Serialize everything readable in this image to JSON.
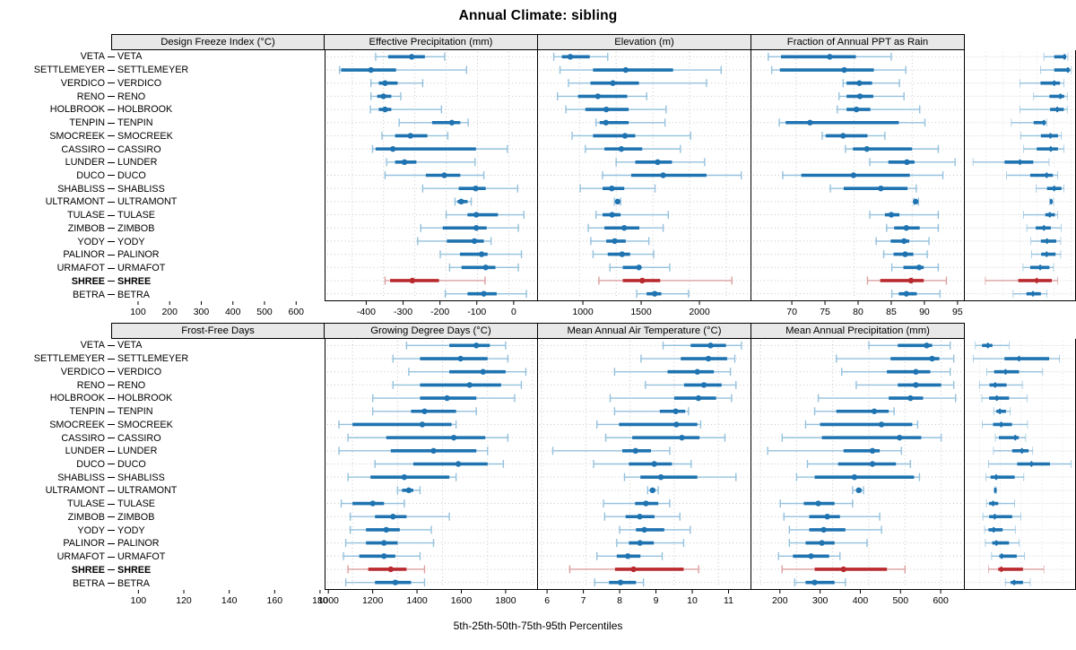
{
  "title": "Annual Climate: sibling",
  "footer": "5th-25th-50th-75th-95th Percentiles",
  "colors": {
    "blue": "#1e73b0",
    "blue_light": "#94c1dd",
    "red": "#b92a2e",
    "red_light": "#dc9fa0",
    "grid": "#c6c6c6",
    "strip_bg": "#e8e8e8",
    "border": "#000000"
  },
  "stations": [
    "VETA",
    "SETTLEMEYER",
    "VERDICO",
    "RENO",
    "HOLBROOK",
    "TENPIN",
    "SMOCREEK",
    "CASSIRO",
    "LUNDER",
    "DUCO",
    "SHABLISS",
    "ULTRAMONT",
    "TULASE",
    "ZIMBOB",
    "YODY",
    "PALINOR",
    "URMAFOT",
    "SHREE",
    "BETRA"
  ],
  "highlight_station": "SHREE",
  "chart_data": {
    "type": "interval-percentile-plot",
    "grid": {
      "rows": 2,
      "cols": 4
    },
    "percentiles": [
      5,
      25,
      50,
      75,
      95
    ],
    "values_convention": "each row is [p5,p25,p50,p75,p95] aligned with stations order",
    "panels": [
      {
        "title": "Design Freeze Index (°C)",
        "xlim": [
          15,
          690
        ],
        "ticks": [
          100,
          200,
          300,
          400,
          500,
          600
        ],
        "values": [
          [
            175,
            215,
            290,
            332,
            395
          ],
          [
            60,
            65,
            160,
            240,
            465
          ],
          [
            160,
            185,
            205,
            245,
            325
          ],
          [
            160,
            180,
            200,
            225,
            255
          ],
          [
            158,
            185,
            205,
            225,
            385
          ],
          [
            250,
            355,
            418,
            445,
            470
          ],
          [
            195,
            237,
            286,
            340,
            405
          ],
          [
            165,
            175,
            230,
            495,
            595
          ],
          [
            210,
            237,
            267,
            305,
            492
          ],
          [
            205,
            335,
            394,
            445,
            520
          ],
          [
            325,
            440,
            494,
            526,
            628
          ],
          [
            428,
            436,
            448,
            468,
            480
          ],
          [
            400,
            468,
            496,
            565,
            648
          ],
          [
            319,
            389,
            496,
            529,
            630
          ],
          [
            309,
            402,
            490,
            520,
            543
          ],
          [
            381,
            444,
            513,
            532,
            640
          ],
          [
            411,
            449,
            526,
            557,
            630
          ],
          [
            205,
            221,
            292,
            377,
            524
          ],
          [
            397,
            468,
            520,
            561,
            656
          ]
        ]
      },
      {
        "title": "Effective Precipitation (mm)",
        "xlim": [
          -513,
          66
        ],
        "ticks": [
          -400,
          -300,
          -200,
          -100,
          0
        ],
        "values": [
          [
            -470,
            -448,
            -425,
            -372,
            -323
          ],
          [
            -453,
            -363,
            -274,
            -145,
            -14
          ],
          [
            -430,
            -370,
            -309,
            -238,
            -54
          ],
          [
            -460,
            -404,
            -350,
            -270,
            -217
          ],
          [
            -437,
            -384,
            -327,
            -266,
            -164
          ],
          [
            -355,
            -345,
            -328,
            -266,
            -167
          ],
          [
            -420,
            -363,
            -276,
            -248,
            -97
          ],
          [
            -384,
            -332,
            -286,
            -229,
            -125
          ],
          [
            -300,
            -248,
            -187,
            -148,
            -59
          ],
          [
            -337,
            -259,
            -172,
            -54,
            41
          ],
          [
            -398,
            -337,
            -312,
            -278,
            -194
          ],
          [
            -305,
            -302,
            -296,
            -291,
            -288
          ],
          [
            -355,
            -337,
            -311,
            -288,
            -158
          ],
          [
            -376,
            -332,
            -278,
            -237,
            -172
          ],
          [
            -369,
            -327,
            -304,
            -274,
            -211
          ],
          [
            -363,
            -323,
            -284,
            -262,
            -198
          ],
          [
            -317,
            -282,
            -238,
            -232,
            -154
          ],
          [
            -347,
            -282,
            -229,
            -180,
            15
          ],
          [
            -244,
            -217,
            -195,
            -177,
            -103
          ]
        ]
      },
      {
        "title": "Elevation (m)",
        "xlim": [
          615,
          2446
        ],
        "ticks": [
          1000,
          1500,
          2000
        ],
        "values": [
          [
            760,
            870,
            1290,
            1515,
            1820
          ],
          [
            790,
            860,
            1415,
            1670,
            1945
          ],
          [
            1405,
            1435,
            1545,
            1655,
            1890
          ],
          [
            1370,
            1435,
            1550,
            1665,
            1930
          ],
          [
            1355,
            1435,
            1520,
            1640,
            2065
          ],
          [
            855,
            910,
            1120,
            1885,
            2110
          ],
          [
            1225,
            1255,
            1405,
            1615,
            1765
          ],
          [
            1425,
            1490,
            1610,
            2000,
            2225
          ],
          [
            1635,
            1795,
            1955,
            2020,
            2370
          ],
          [
            885,
            1045,
            1495,
            1980,
            2265
          ],
          [
            1295,
            1410,
            1730,
            1960,
            2035
          ],
          [
            2015,
            2022,
            2030,
            2042,
            2055
          ],
          [
            1635,
            1765,
            1820,
            1890,
            2225
          ],
          [
            1780,
            1845,
            1950,
            2065,
            2225
          ],
          [
            1690,
            1815,
            1930,
            1975,
            2145
          ],
          [
            1755,
            1840,
            1940,
            2010,
            2130
          ],
          [
            1825,
            1925,
            2060,
            2100,
            2225
          ],
          [
            1615,
            1725,
            1990,
            2100,
            2295
          ],
          [
            1825,
            1885,
            1950,
            2040,
            2240
          ]
        ]
      },
      {
        "title": "Fraction of Annual PPT as Rain",
        "xlim": [
          63.9,
          96.1
        ],
        "ticks": [
          70,
          75,
          80,
          85,
          90,
          95
        ],
        "values": [
          [
            87,
            90,
            93,
            93.5,
            94
          ],
          [
            86,
            90,
            94,
            94.6,
            95
          ],
          [
            80,
            86,
            90,
            91.7,
            92.8
          ],
          [
            84,
            88.6,
            91.8,
            92.9,
            93.8
          ],
          [
            80,
            88.8,
            90.9,
            92.8,
            93.8
          ],
          [
            77.5,
            84,
            87,
            87.6,
            87.8
          ],
          [
            80.2,
            86.1,
            88.9,
            91.1,
            92.1
          ],
          [
            81.1,
            84.9,
            89,
            91.1,
            92.8
          ],
          [
            66.3,
            75.5,
            80,
            83.9,
            88.5
          ],
          [
            76.1,
            83,
            87.8,
            89.6,
            91
          ],
          [
            84.7,
            87.9,
            90,
            92.1,
            92.8
          ],
          [
            88.7,
            88.9,
            89.1,
            89.5,
            89.8
          ],
          [
            81,
            87.4,
            88.7,
            90.2,
            91
          ],
          [
            82,
            84.6,
            87,
            89,
            92
          ],
          [
            83.2,
            86.1,
            87.9,
            90.6,
            91.9
          ],
          [
            83.4,
            86.2,
            87.8,
            90.4,
            91.9
          ],
          [
            80.9,
            83,
            85.9,
            88.6,
            89.8
          ],
          [
            69.9,
            79.5,
            84.9,
            89.3,
            91
          ],
          [
            78,
            81.9,
            83.8,
            86.1,
            87.9
          ]
        ]
      },
      {
        "title": "Frost-Free Days",
        "xlim": [
          88,
          182
        ],
        "ticks": [
          100,
          120,
          140,
          160,
          180
        ],
        "values": [
          [
            124,
            143,
            155,
            161,
            168
          ],
          [
            118,
            130,
            148,
            160,
            169
          ],
          [
            125,
            143,
            158,
            168,
            177
          ],
          [
            118,
            130,
            152,
            166,
            175
          ],
          [
            109,
            130,
            142,
            155,
            172
          ],
          [
            109,
            126,
            132,
            146,
            155
          ],
          [
            94,
            100,
            131,
            144,
            146
          ],
          [
            98,
            115,
            145,
            159,
            169
          ],
          [
            94,
            117,
            136,
            155,
            160
          ],
          [
            110,
            127,
            147,
            160,
            167
          ],
          [
            98,
            108,
            123,
            143,
            146
          ],
          [
            120,
            122,
            125,
            127,
            130
          ],
          [
            95,
            100,
            109,
            114,
            123
          ],
          [
            99,
            110,
            118,
            124,
            143
          ],
          [
            99,
            106,
            115,
            121,
            135
          ],
          [
            97,
            106,
            114,
            120,
            136
          ],
          [
            96,
            103,
            114,
            119,
            130
          ],
          [
            98,
            107,
            117,
            124,
            132
          ],
          [
            97,
            110,
            119,
            126,
            132
          ]
        ]
      },
      {
        "title": "Growing Degree Days (°C)",
        "xlim": [
          983,
          1946
        ],
        "ticks": [
          1000,
          1200,
          1400,
          1600,
          1800
        ],
        "values": [
          [
            1550,
            1675,
            1765,
            1835,
            1905
          ],
          [
            1450,
            1630,
            1755,
            1840,
            1875
          ],
          [
            1330,
            1570,
            1705,
            1780,
            1855
          ],
          [
            1470,
            1645,
            1735,
            1815,
            1880
          ],
          [
            1310,
            1600,
            1710,
            1790,
            1860
          ],
          [
            1330,
            1535,
            1607,
            1650,
            1665
          ],
          [
            1250,
            1350,
            1610,
            1705,
            1720
          ],
          [
            1290,
            1410,
            1635,
            1715,
            1830
          ],
          [
            1050,
            1365,
            1425,
            1495,
            1580
          ],
          [
            1235,
            1395,
            1510,
            1590,
            1677
          ],
          [
            1375,
            1447,
            1540,
            1705,
            1880
          ],
          [
            1480,
            1490,
            1502,
            1515,
            1528
          ],
          [
            1280,
            1423,
            1472,
            1528,
            1580
          ],
          [
            1285,
            1380,
            1444,
            1511,
            1626
          ],
          [
            1353,
            1427,
            1465,
            1555,
            1673
          ],
          [
            1340,
            1395,
            1445,
            1508,
            1643
          ],
          [
            1250,
            1340,
            1390,
            1447,
            1546
          ],
          [
            1127,
            1332,
            1416,
            1643,
            1711
          ],
          [
            1240,
            1305,
            1357,
            1427,
            1461
          ]
        ]
      },
      {
        "title": "Mean Annual Air Temperature (°C)",
        "xlim": [
          5.75,
          11.63
        ],
        "ticks": [
          6,
          7,
          8,
          9,
          10,
          11
        ],
        "values": [
          [
            9.0,
            9.8,
            10.6,
            10.75,
            11.25
          ],
          [
            8.1,
            9.6,
            10.75,
            10.95,
            11.35
          ],
          [
            8.25,
            9.5,
            10.3,
            10.7,
            11.25
          ],
          [
            8.65,
            9.8,
            10.3,
            11.0,
            11.35
          ],
          [
            7.6,
            9.55,
            10.15,
            10.5,
            11.4
          ],
          [
            7.5,
            8.1,
            9.15,
            9.55,
            9.7
          ],
          [
            7.25,
            7.65,
            9.35,
            10.2,
            10.35
          ],
          [
            6.6,
            7.7,
            9.85,
            10.45,
            11.0
          ],
          [
            6.2,
            8.3,
            9.1,
            9.3,
            9.9
          ],
          [
            7.3,
            8.15,
            9.1,
            9.75,
            10.15
          ],
          [
            7.0,
            7.5,
            8.6,
            10.25,
            10.4
          ],
          [
            8.55,
            8.65,
            8.72,
            8.8,
            8.85
          ],
          [
            6.55,
            7.2,
            7.6,
            8.05,
            8.55
          ],
          [
            6.65,
            7.35,
            7.85,
            8.2,
            9.3
          ],
          [
            6.8,
            7.35,
            7.75,
            8.35,
            9.35
          ],
          [
            6.8,
            7.25,
            7.7,
            8.05,
            8.95
          ],
          [
            6.5,
            6.9,
            7.4,
            7.9,
            8.2
          ],
          [
            6.6,
            7.5,
            8.3,
            9.5,
            10.0
          ],
          [
            6.95,
            7.25,
            7.5,
            8.05,
            8.35
          ]
        ]
      },
      {
        "title": "Mean Annual Precipitation (mm)",
        "xlim": [
          129,
          660
        ],
        "ticks": [
          200,
          300,
          400,
          500,
          600
        ],
        "values": [
          [
            180,
            212,
            240,
            262,
            342
          ],
          [
            170,
            320,
            390,
            535,
            585
          ],
          [
            235,
            270,
            325,
            390,
            504
          ],
          [
            199,
            248,
            275,
            330,
            406
          ],
          [
            211,
            246,
            283,
            342,
            430
          ],
          [
            268,
            281,
            298,
            327,
            348
          ],
          [
            213,
            265,
            304,
            356,
            431
          ],
          [
            276,
            293,
            372,
            389,
            422
          ],
          [
            267,
            357,
            404,
            436,
            456
          ],
          [
            243,
            381,
            450,
            539,
            641
          ],
          [
            230,
            253,
            280,
            369,
            413
          ],
          [
            272,
            274,
            276,
            279,
            281
          ],
          [
            233,
            246,
            265,
            290,
            369
          ],
          [
            216,
            246,
            273,
            357,
            399
          ],
          [
            224,
            243,
            268,
            311,
            372
          ],
          [
            228,
            261,
            281,
            342,
            391
          ],
          [
            258,
            295,
            307,
            379,
            416
          ],
          [
            243,
            290,
            305,
            409,
            510
          ],
          [
            324,
            350,
            367,
            409,
            444
          ]
        ]
      }
    ]
  }
}
